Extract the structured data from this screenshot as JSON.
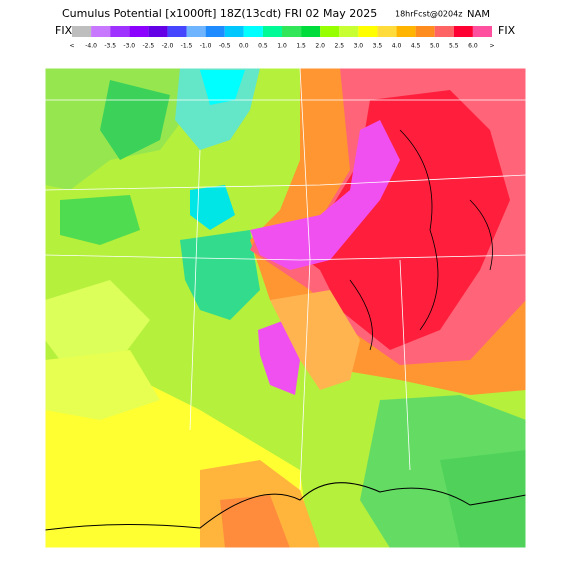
{
  "header": {
    "title": "Cumulus Potential [x1000ft] 18Z(13cdt) FRI 02 May 2025",
    "forecast": "18hrFcst@0204z",
    "model": "NAM"
  },
  "colorbar": {
    "left_label": "FIX",
    "right_label": "FIX",
    "labels": [
      "<",
      "-4.0",
      "-3.5",
      "-3.0",
      "-2.5",
      "-2.0",
      "-1.5",
      "-1.0",
      "-0.5",
      "0.0",
      "0.5",
      "1.0",
      "1.5",
      "2.0",
      "2.5",
      "3.0",
      "3.5",
      "4.0",
      "4.5",
      "5.0",
      "5.5",
      "6.0",
      ">"
    ],
    "colors": [
      "#bebebe",
      "#c878ff",
      "#a032ff",
      "#8c00ff",
      "#6400e6",
      "#4646ff",
      "#6eb4ff",
      "#1e8cff",
      "#00c8ff",
      "#00ffff",
      "#00fa96",
      "#32e65a",
      "#00dc3c",
      "#96ff00",
      "#c8ff32",
      "#ffff00",
      "#ffdc3c",
      "#ffb400",
      "#ff8c1e",
      "#ff6464",
      "#ff0032",
      "#ff50a0"
    ]
  }
}
